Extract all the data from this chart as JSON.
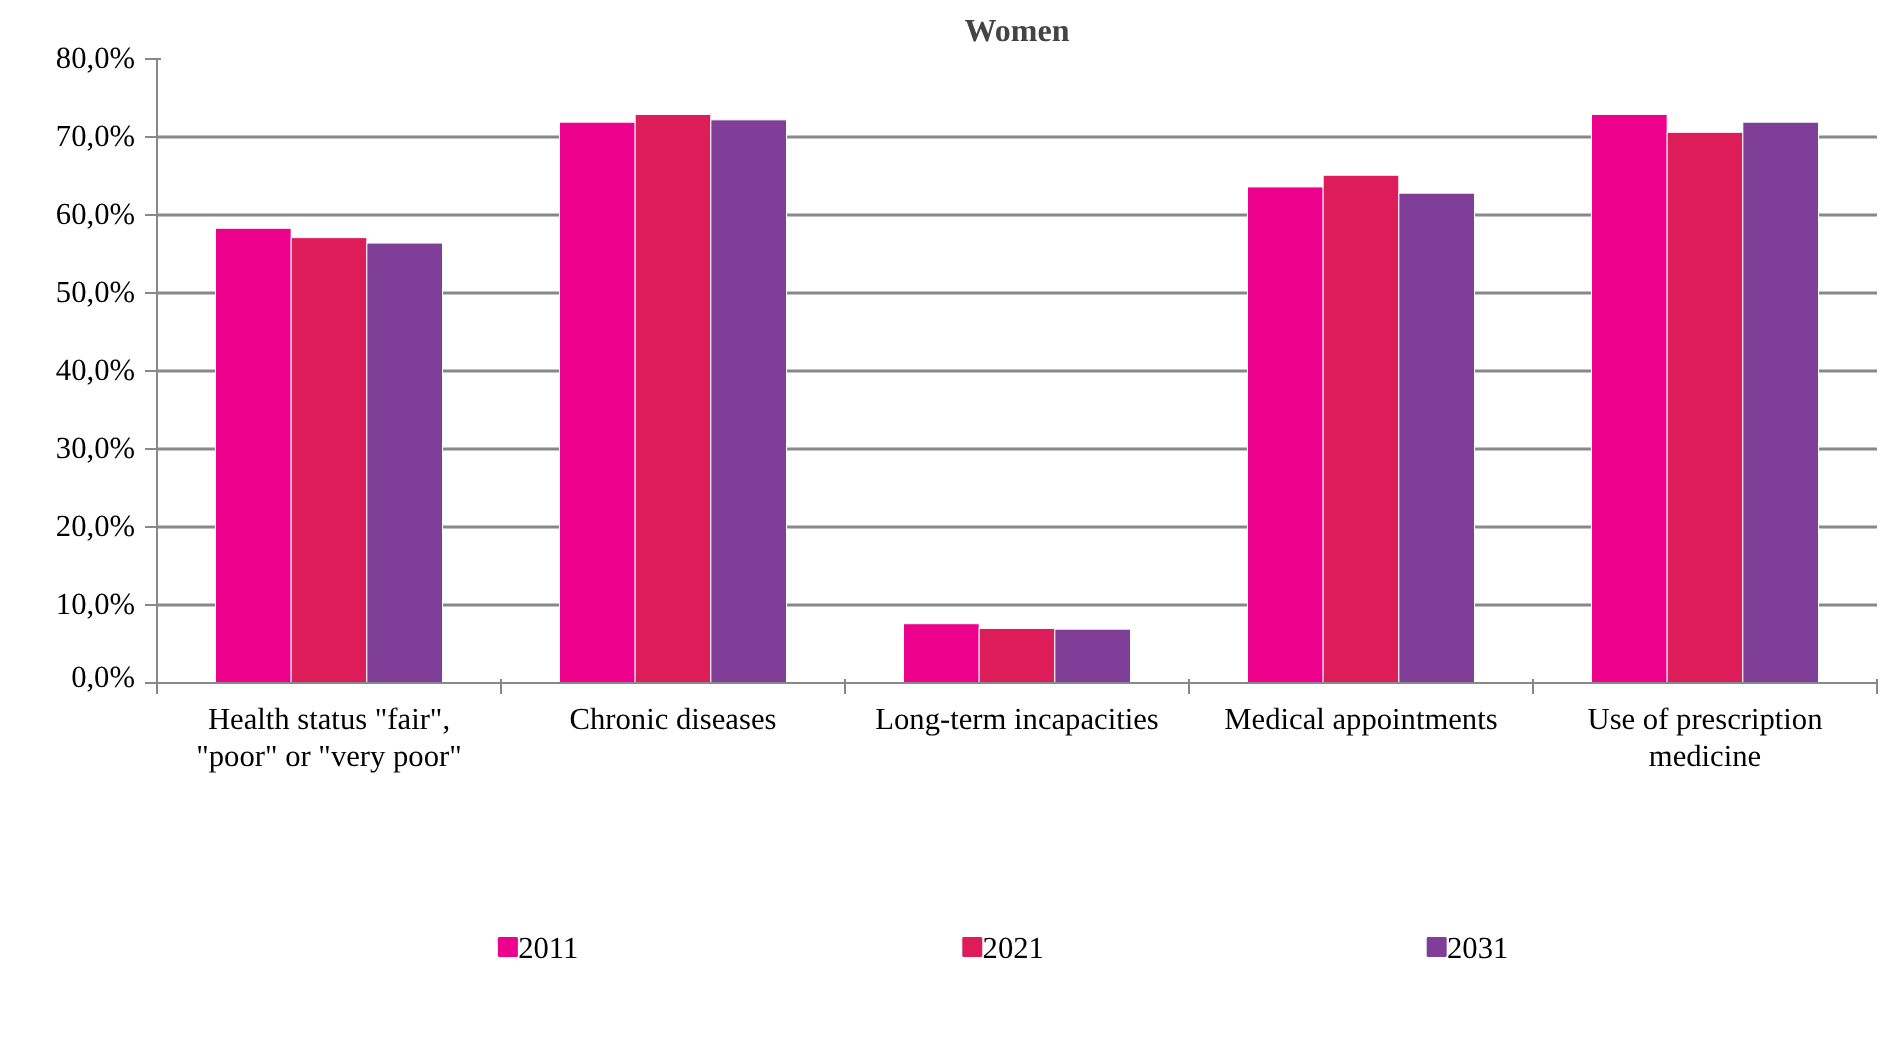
{
  "chart_data": {
    "type": "bar",
    "title": "Women",
    "categories": [
      "Health status \"fair\", \"poor\" or \"very poor\"",
      "Chronic diseases",
      "Long-term incapacities",
      "Medical appointments",
      "Use of prescription medicine"
    ],
    "series": [
      {
        "name": "2011",
        "color": "#ec008c",
        "values": [
          58.3,
          71.9,
          7.6,
          63.6,
          72.9
        ]
      },
      {
        "name": "2021",
        "color": "#dc1d5a",
        "values": [
          57.1,
          72.9,
          7.0,
          65.1,
          70.6
        ]
      },
      {
        "name": "2031",
        "color": "#7f3f98",
        "values": [
          56.4,
          72.2,
          6.9,
          62.8,
          71.9
        ]
      }
    ],
    "ylim": [
      0,
      80
    ],
    "yticks": [
      {
        "value": 0,
        "label": "0,0%"
      },
      {
        "value": 10,
        "label": "10,0%"
      },
      {
        "value": 20,
        "label": "20,0%"
      },
      {
        "value": 30,
        "label": "30,0%"
      },
      {
        "value": 40,
        "label": "40,0%"
      },
      {
        "value": 50,
        "label": "50,0%"
      },
      {
        "value": 60,
        "label": "60,0%"
      },
      {
        "value": 70,
        "label": "70,0%"
      },
      {
        "value": 80,
        "label": "80,0%"
      }
    ],
    "grid": "y",
    "legend": "bottom"
  }
}
